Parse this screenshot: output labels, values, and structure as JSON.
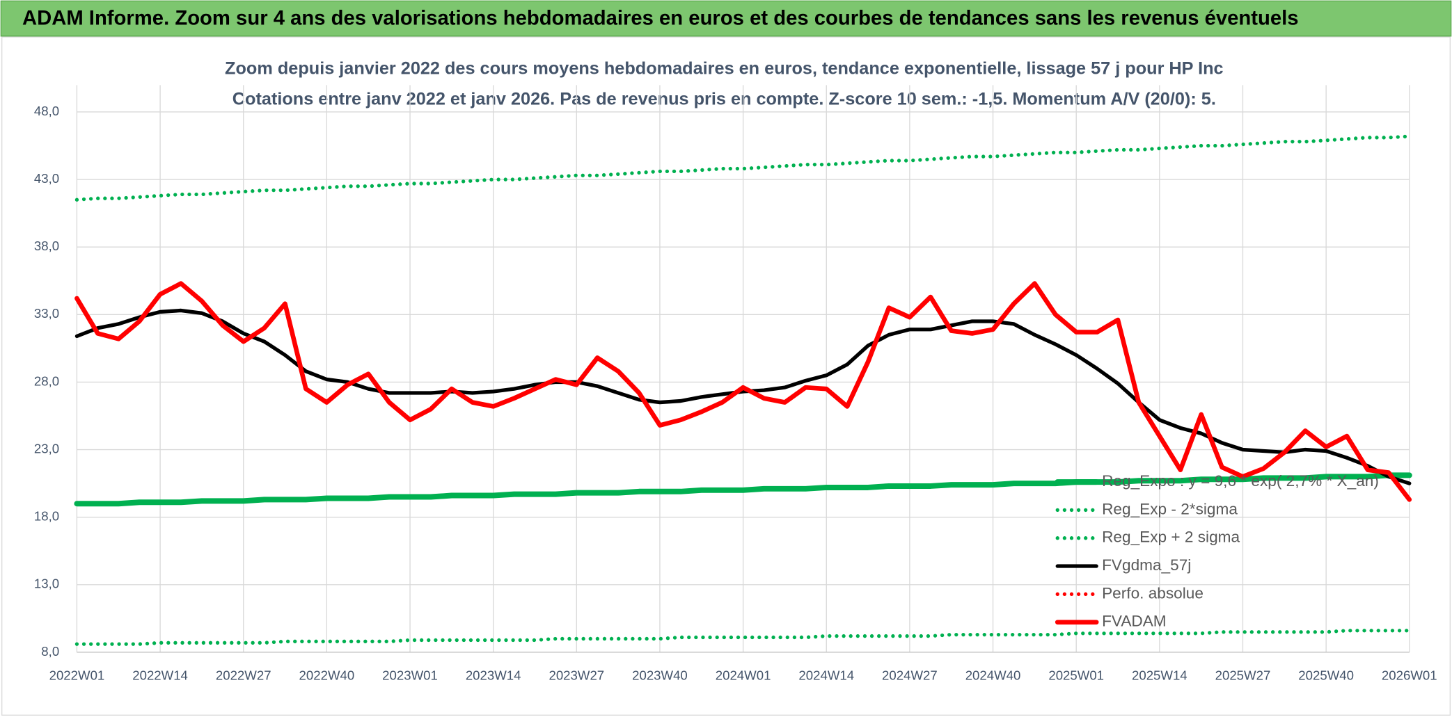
{
  "chart_data": {
    "type": "line",
    "header": "ADAM Informe. Zoom sur 4 ans des valorisations hebdomadaires en euros et des courbes de tendances sans les revenus éventuels",
    "title": "Zoom depuis janvier 2022 des cours moyens hebdomadaires en euros, tendance exponentielle, lissage 57 j pour HP Inc",
    "subtitle": "Cotations entre janv 2022 et janv 2026. Pas de revenus pris en compte. Z-score 10 sem.: -1,5. Momentum A/V (20/0): 5.",
    "categories": [
      "2022W01",
      null,
      null,
      null,
      "2022W14",
      null,
      null,
      null,
      "2022W27",
      null,
      null,
      null,
      "2022W40",
      null,
      null,
      null,
      "2023W01",
      null,
      null,
      null,
      "2023W14",
      null,
      null,
      null,
      "2023W27",
      null,
      null,
      null,
      "2023W40",
      null,
      null,
      null,
      "2024W01",
      null,
      null,
      null,
      "2024W14",
      null,
      null,
      null,
      "2024W27",
      null,
      null,
      null,
      "2024W40",
      null,
      null,
      null,
      "2025W01",
      null,
      null,
      null,
      "2025W14",
      null,
      null,
      null,
      "2025W27",
      null,
      null,
      null,
      "2025W40",
      null,
      null,
      null,
      "2026W01"
    ],
    "ylim": [
      8,
      50
    ],
    "yticks": [
      {
        "value": 8,
        "label": "8,0"
      },
      {
        "value": 13,
        "label": "13,0"
      },
      {
        "value": 18,
        "label": "18,0"
      },
      {
        "value": 23,
        "label": "23,0"
      },
      {
        "value": 28,
        "label": "28,0"
      },
      {
        "value": 33,
        "label": "33,0"
      },
      {
        "value": 38,
        "label": "38,0"
      },
      {
        "value": 43,
        "label": "43,0"
      },
      {
        "value": 48,
        "label": "48,0"
      }
    ],
    "grid": true,
    "legend": "right",
    "series": [
      {
        "name": "Reg_Expo : y = 9,6 * exp( 2,7% * X_an)",
        "color": "#00b050",
        "line_style": "solid",
        "line_width": 6,
        "values": [
          19.0,
          19.0,
          19.0,
          19.1,
          19.1,
          19.1,
          19.2,
          19.2,
          19.2,
          19.3,
          19.3,
          19.3,
          19.4,
          19.4,
          19.4,
          19.5,
          19.5,
          19.5,
          19.6,
          19.6,
          19.6,
          19.7,
          19.7,
          19.7,
          19.8,
          19.8,
          19.8,
          19.9,
          19.9,
          19.9,
          20.0,
          20.0,
          20.0,
          20.1,
          20.1,
          20.1,
          20.2,
          20.2,
          20.2,
          20.3,
          20.3,
          20.3,
          20.4,
          20.4,
          20.4,
          20.5,
          20.5,
          20.5,
          20.6,
          20.6,
          20.6,
          20.7,
          20.7,
          20.7,
          20.8,
          20.8,
          20.8,
          20.9,
          20.9,
          20.9,
          21.0,
          21.0,
          21.0,
          21.1,
          21.1
        ]
      },
      {
        "name": "Reg_Exp - 2*sigma",
        "color": "#00b050",
        "line_style": "dotted",
        "line_width": 4,
        "values": [
          8.6,
          8.6,
          8.6,
          8.6,
          8.7,
          8.7,
          8.7,
          8.7,
          8.7,
          8.7,
          8.8,
          8.8,
          8.8,
          8.8,
          8.8,
          8.8,
          8.9,
          8.9,
          8.9,
          8.9,
          8.9,
          8.9,
          8.9,
          9.0,
          9.0,
          9.0,
          9.0,
          9.0,
          9.0,
          9.1,
          9.1,
          9.1,
          9.1,
          9.1,
          9.1,
          9.1,
          9.2,
          9.2,
          9.2,
          9.2,
          9.2,
          9.2,
          9.3,
          9.3,
          9.3,
          9.3,
          9.3,
          9.3,
          9.4,
          9.4,
          9.4,
          9.4,
          9.4,
          9.4,
          9.4,
          9.5,
          9.5,
          9.5,
          9.5,
          9.5,
          9.5,
          9.6,
          9.6,
          9.6,
          9.6
        ]
      },
      {
        "name": "Reg_Exp + 2 sigma",
        "color": "#00b050",
        "line_style": "dotted",
        "line_width": 4,
        "values": [
          41.5,
          41.6,
          41.6,
          41.7,
          41.8,
          41.9,
          41.9,
          42.0,
          42.1,
          42.2,
          42.2,
          42.3,
          42.4,
          42.5,
          42.5,
          42.6,
          42.7,
          42.7,
          42.8,
          42.9,
          43.0,
          43.0,
          43.1,
          43.2,
          43.3,
          43.3,
          43.4,
          43.5,
          43.6,
          43.6,
          43.7,
          43.8,
          43.8,
          43.9,
          44.0,
          44.1,
          44.1,
          44.2,
          44.3,
          44.4,
          44.4,
          44.5,
          44.6,
          44.7,
          44.7,
          44.8,
          44.9,
          45.0,
          45.0,
          45.1,
          45.2,
          45.2,
          45.3,
          45.4,
          45.5,
          45.5,
          45.6,
          45.7,
          45.8,
          45.8,
          45.9,
          46.0,
          46.1,
          46.1,
          46.2
        ]
      },
      {
        "name": "FVgdma_57j",
        "color": "#000000",
        "line_style": "solid",
        "line_width": 4,
        "values": [
          31.4,
          32.0,
          32.3,
          32.8,
          33.2,
          33.3,
          33.1,
          32.5,
          31.6,
          31.0,
          30.0,
          28.8,
          28.2,
          28.0,
          27.5,
          27.2,
          27.2,
          27.2,
          27.3,
          27.2,
          27.3,
          27.5,
          27.8,
          28.0,
          28.0,
          27.7,
          27.2,
          26.7,
          26.5,
          26.6,
          26.9,
          27.1,
          27.3,
          27.4,
          27.6,
          28.1,
          28.5,
          29.3,
          30.7,
          31.5,
          31.9,
          31.9,
          32.2,
          32.5,
          32.5,
          32.3,
          31.5,
          30.8,
          30.0,
          29.0,
          27.9,
          26.5,
          25.2,
          24.6,
          24.2,
          23.5,
          23.0,
          22.9,
          22.8,
          23.0,
          22.9,
          22.4,
          21.8,
          21.0,
          20.5
        ]
      },
      {
        "name": "Perfo. absolue",
        "color": "#ff0000",
        "line_style": "dotted",
        "line_width": 4,
        "values": [
          null,
          null,
          null,
          null,
          null,
          null,
          null,
          null,
          null,
          null,
          null,
          null,
          null,
          null,
          null,
          null,
          null,
          null,
          null,
          null,
          null,
          null,
          null,
          null,
          null,
          null,
          null,
          null,
          null,
          null,
          null,
          null,
          null,
          null,
          null,
          null,
          null,
          null,
          null,
          null,
          null,
          null,
          null,
          null,
          null,
          null,
          null,
          null,
          null,
          null,
          null,
          null,
          null,
          null,
          null,
          null,
          null,
          null,
          null,
          null,
          null,
          null,
          null,
          null,
          null
        ]
      },
      {
        "name": "FVADAM",
        "color": "#ff0000",
        "line_style": "solid",
        "line_width": 5,
        "values": [
          34.2,
          31.6,
          31.2,
          32.5,
          34.5,
          35.3,
          34.0,
          32.2,
          31.0,
          32.0,
          33.8,
          27.5,
          26.5,
          27.8,
          28.6,
          26.5,
          25.2,
          26.0,
          27.5,
          26.5,
          26.2,
          26.8,
          27.5,
          28.2,
          27.8,
          29.8,
          28.8,
          27.2,
          24.8,
          25.2,
          25.8,
          26.5,
          27.6,
          26.8,
          26.5,
          27.6,
          27.5,
          26.2,
          29.5,
          33.5,
          32.8,
          34.3,
          31.8,
          31.6,
          31.9,
          33.8,
          35.3,
          33.0,
          31.7,
          31.7,
          32.6,
          26.5,
          24.0,
          21.5,
          25.6,
          21.7,
          21.0,
          21.6,
          22.8,
          24.4,
          23.2,
          24.0,
          21.5,
          21.3,
          19.3
        ]
      }
    ]
  }
}
